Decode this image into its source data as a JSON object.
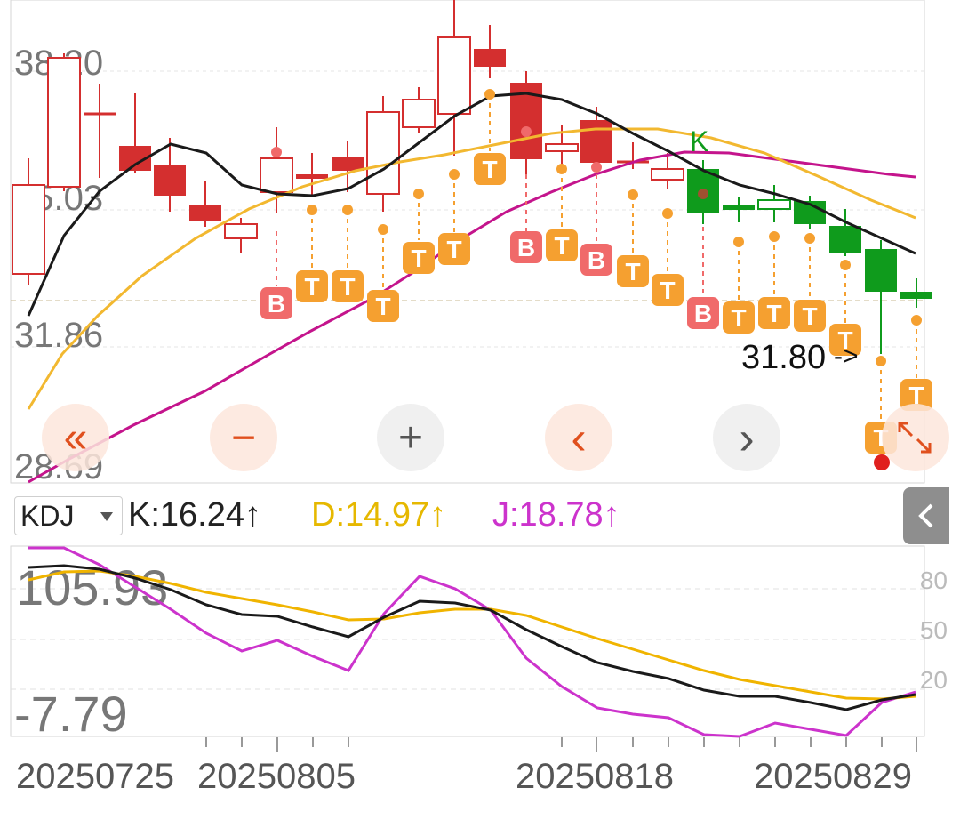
{
  "main_chart": {
    "price_axis": [
      "38.20",
      "35.03",
      "31.86",
      "28.69"
    ],
    "price_marker": "31.80",
    "price_marker_arrow": "->",
    "k_marker": "K",
    "bt_labels": {
      "B": "B",
      "T": "T"
    }
  },
  "controls": {
    "rewind_label": "«",
    "zoom_out_label": "−",
    "zoom_in_label": "+",
    "prev_label": "‹",
    "next_label": "›",
    "expand_icon": "expand-icon"
  },
  "indicator": {
    "selected": "KDJ",
    "k_label": "K:16.24↑",
    "d_label": "D:14.97↑",
    "j_label": "J:18.78↑",
    "k_color": "#222222",
    "d_color": "#e6b800",
    "j_color": "#cc33cc",
    "axis_max": "105.93",
    "axis_min": "-7.79",
    "right_ticks": [
      "80",
      "50",
      "20"
    ]
  },
  "date_axis": [
    "20250725",
    "20250805",
    "20250818",
    "20250829"
  ],
  "colors": {
    "up": "#d42f2f",
    "down": "#0f9b1c",
    "ma_black": "#1a1a1a",
    "ma_yellow": "#f2b830",
    "ma_magenta": "#c4148c",
    "t_badge": "#f5a030",
    "b_badge": "#f06a6a"
  }
}
